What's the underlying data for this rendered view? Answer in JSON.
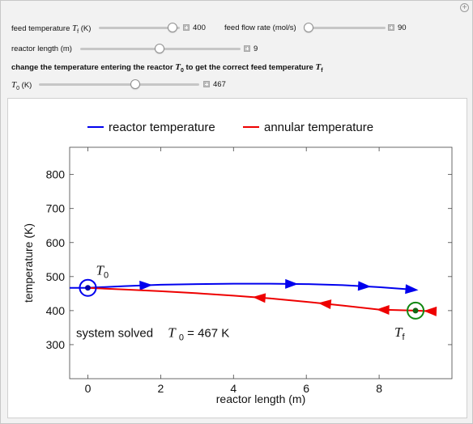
{
  "controls": {
    "feed_temperature": {
      "label": "feed temperature",
      "symbol": "T",
      "subscript": "f",
      "unit": "(K)",
      "value": "400",
      "fraction": 0.7
    },
    "feed_flow_rate": {
      "label": "feed flow rate (mol/s)",
      "value": "90",
      "fraction": 0.0
    },
    "reactor_length": {
      "label": "reactor length (m)",
      "value": "9",
      "fraction": 0.55
    },
    "instruction": {
      "prefix": "change the temperature entering the reactor",
      "t0_symbol": "T",
      "t0_sub": "0",
      "middle": "to get the correct feed temperature",
      "tf_symbol": "T",
      "tf_sub": "f"
    },
    "t0": {
      "symbol": "T",
      "subscript": "0",
      "unit": "(K)",
      "value": "467",
      "fraction": 0.58
    }
  },
  "chart_data": {
    "type": "line",
    "legend": [
      {
        "name": "reactor temperature",
        "color": "#0000ee"
      },
      {
        "name": "annular temperature",
        "color": "#ee0000"
      }
    ],
    "legend_position": "top",
    "xlabel": "reactor length (m)",
    "ylabel": "temperature (K)",
    "xlim": [
      -0.5,
      10
    ],
    "ylim": [
      200,
      880
    ],
    "xticks": [
      "0",
      "2",
      "4",
      "6",
      "8"
    ],
    "yticks": [
      "300",
      "400",
      "500",
      "600",
      "700",
      "800"
    ],
    "xtick_values": [
      0,
      2,
      4,
      6,
      8
    ],
    "ytick_values": [
      300,
      400,
      500,
      600,
      700,
      800
    ],
    "series": [
      {
        "name": "reactor temperature",
        "color": "#0000ee",
        "x": [
          -0.5,
          0,
          1,
          2,
          3,
          4,
          5,
          6,
          7,
          8,
          9
        ],
        "y": [
          467,
          467,
          472,
          476,
          478,
          479,
          479,
          478,
          475,
          469,
          461
        ],
        "arrow_x": [
          1.6,
          5.6,
          7.6,
          8.9
        ]
      },
      {
        "name": "annular temperature",
        "color": "#ee0000",
        "x": [
          0,
          1,
          2,
          3,
          4,
          5,
          6,
          7,
          8,
          9,
          9.5
        ],
        "y": [
          467,
          462,
          457,
          451,
          444,
          436,
          426,
          415,
          403,
          400,
          398
        ],
        "arrow_x": [
          4.7,
          6.5,
          8.1,
          9.4
        ]
      }
    ],
    "markers": [
      {
        "label_symbol": "T",
        "label_sub": "0",
        "x": 0,
        "y": 467,
        "ring_color": "#0000ee",
        "dot_color": "#0000aa"
      },
      {
        "label_symbol": "T",
        "label_sub": "f",
        "x": 9,
        "y": 400,
        "ring_color": "#118811",
        "dot_color": "#116611"
      }
    ],
    "annotation": {
      "text": "system solved",
      "eq_symbol": "T",
      "eq_sub": "0",
      "eq_value": " = 467 K",
      "x": 4.3,
      "y": 322
    }
  }
}
